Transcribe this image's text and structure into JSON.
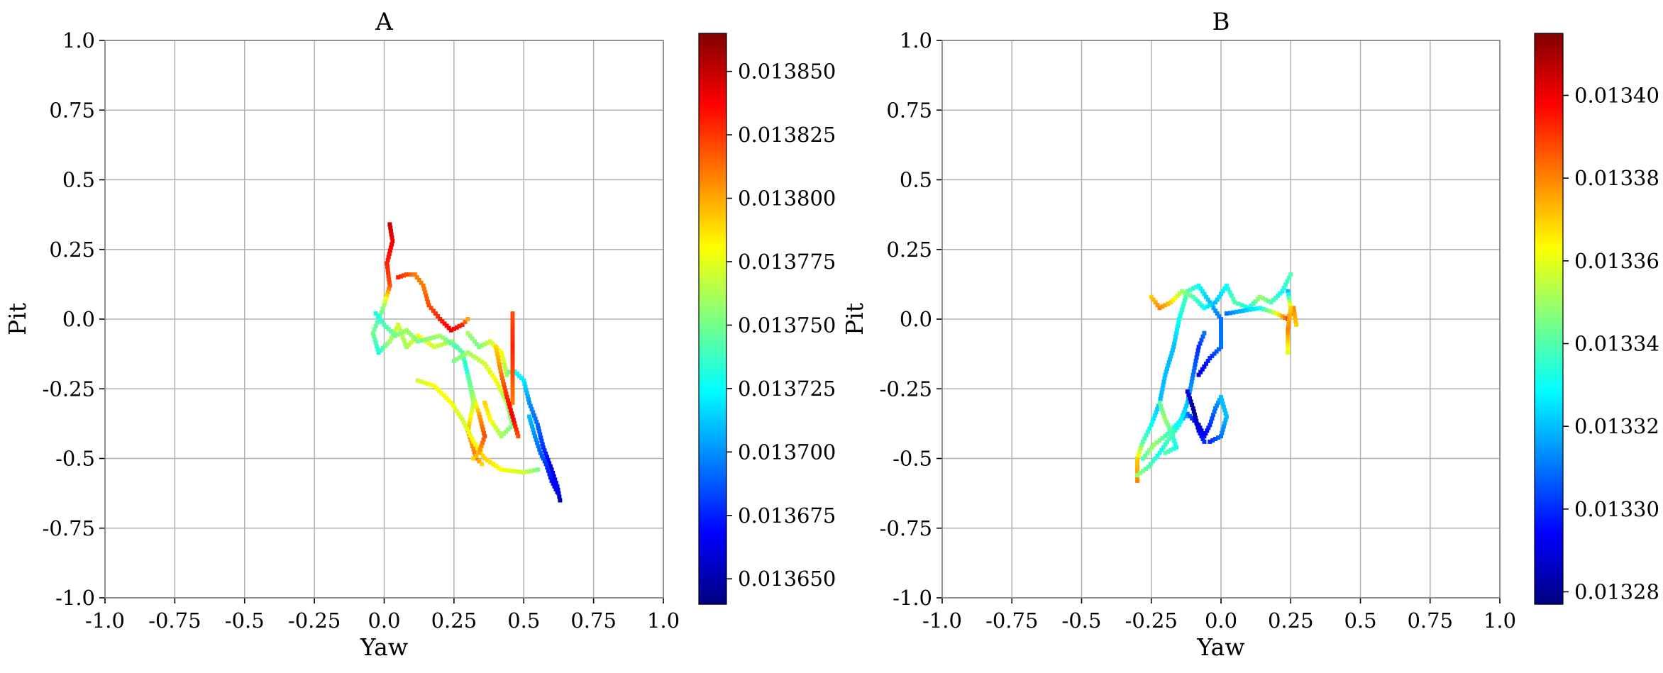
{
  "colormap": "jet",
  "chart_data": [
    {
      "type": "heatmap",
      "title": "A",
      "xlabel": "Yaw",
      "ylabel": "Pit",
      "xlim": [
        -1.0,
        1.0
      ],
      "ylim": [
        -1.0,
        1.0
      ],
      "grid": true,
      "xticks": [
        "-1.0",
        "-0.75",
        "-0.5",
        "-0.25",
        "0.0",
        "0.25",
        "0.5",
        "0.75",
        "1.0"
      ],
      "yticks": [
        "-1.0",
        "-0.75",
        "-0.5",
        "-0.25",
        "0.0",
        "0.25",
        "0.5",
        "0.75",
        "1.0"
      ],
      "colorbar": {
        "range": [
          0.01364,
          0.013865
        ],
        "ticks": [
          "0.013650",
          "0.013675",
          "0.013700",
          "0.013725",
          "0.013750",
          "0.013775",
          "0.013800",
          "0.013825",
          "0.013850"
        ],
        "tick_values": [
          0.01365,
          0.013675,
          0.0137,
          0.013725,
          0.01375,
          0.013775,
          0.0138,
          0.013825,
          0.01385
        ]
      },
      "paths": [
        [
          [
            0.02,
            0.34
          ],
          [
            0.03,
            0.28
          ],
          [
            0.01,
            0.2
          ],
          [
            0.02,
            0.12
          ],
          [
            0.0,
            0.05
          ],
          [
            -0.02,
            0.0
          ],
          [
            -0.04,
            -0.05
          ],
          [
            -0.02,
            -0.12
          ],
          [
            0.02,
            -0.08
          ],
          [
            0.05,
            -0.02
          ],
          [
            0.08,
            -0.1
          ],
          [
            0.12,
            -0.06
          ],
          [
            0.18,
            -0.1
          ],
          [
            0.24,
            -0.08
          ],
          [
            0.28,
            -0.12
          ],
          [
            0.3,
            -0.2
          ],
          [
            0.32,
            -0.3
          ],
          [
            0.3,
            -0.4
          ],
          [
            0.33,
            -0.5
          ],
          [
            0.35,
            -0.52
          ]
        ],
        [
          [
            0.05,
            0.15
          ],
          [
            0.08,
            0.16
          ],
          [
            0.11,
            0.16
          ],
          [
            0.14,
            0.12
          ],
          [
            0.16,
            0.05
          ],
          [
            0.2,
            0.0
          ],
          [
            0.24,
            -0.04
          ],
          [
            0.28,
            -0.02
          ],
          [
            0.3,
            0.0
          ]
        ],
        [
          [
            0.3,
            -0.05
          ],
          [
            0.34,
            -0.1
          ],
          [
            0.38,
            -0.08
          ],
          [
            0.42,
            -0.12
          ],
          [
            0.44,
            -0.2
          ],
          [
            0.46,
            -0.18
          ],
          [
            0.5,
            -0.22
          ],
          [
            0.52,
            -0.3
          ],
          [
            0.55,
            -0.38
          ],
          [
            0.57,
            -0.46
          ],
          [
            0.6,
            -0.54
          ],
          [
            0.62,
            -0.6
          ],
          [
            0.63,
            -0.65
          ]
        ],
        [
          [
            0.12,
            -0.22
          ],
          [
            0.18,
            -0.24
          ],
          [
            0.24,
            -0.3
          ],
          [
            0.28,
            -0.36
          ],
          [
            0.32,
            -0.44
          ],
          [
            0.36,
            -0.5
          ],
          [
            0.42,
            -0.54
          ],
          [
            0.5,
            -0.55
          ],
          [
            0.55,
            -0.54
          ]
        ],
        [
          [
            0.25,
            -0.15
          ],
          [
            0.3,
            -0.12
          ],
          [
            0.36,
            -0.16
          ],
          [
            0.4,
            -0.22
          ],
          [
            0.44,
            -0.3
          ],
          [
            0.46,
            -0.38
          ],
          [
            0.42,
            -0.42
          ],
          [
            0.38,
            -0.36
          ],
          [
            0.36,
            -0.3
          ]
        ],
        [
          [
            0.46,
            0.02
          ],
          [
            0.46,
            -0.1
          ],
          [
            0.46,
            -0.2
          ],
          [
            0.46,
            -0.3
          ]
        ],
        [
          [
            0.4,
            -0.1
          ],
          [
            0.42,
            -0.2
          ],
          [
            0.44,
            -0.28
          ],
          [
            0.46,
            -0.35
          ],
          [
            0.48,
            -0.42
          ]
        ],
        [
          [
            0.52,
            -0.35
          ],
          [
            0.54,
            -0.42
          ],
          [
            0.56,
            -0.48
          ],
          [
            0.58,
            -0.52
          ],
          [
            0.6,
            -0.58
          ],
          [
            0.62,
            -0.62
          ]
        ],
        [
          [
            0.3,
            -0.2
          ],
          [
            0.32,
            -0.28
          ],
          [
            0.34,
            -0.34
          ],
          [
            0.36,
            -0.42
          ],
          [
            0.34,
            -0.48
          ],
          [
            0.32,
            -0.5
          ]
        ],
        [
          [
            -0.03,
            0.02
          ],
          [
            0.0,
            -0.02
          ],
          [
            0.04,
            -0.06
          ],
          [
            0.08,
            -0.04
          ],
          [
            0.12,
            -0.08
          ],
          [
            0.2,
            -0.06
          ],
          [
            0.26,
            -0.1
          ]
        ]
      ],
      "path_values": [
        [
          0.01385,
          0.01384,
          0.01383,
          0.01382,
          0.01376,
          0.01374,
          0.01375,
          0.01373,
          0.01376,
          0.01377,
          0.01376,
          0.01378,
          0.01377,
          0.01376,
          0.01374,
          0.01373,
          0.01376,
          0.0138,
          0.01381,
          0.01379
        ],
        [
          0.01383,
          0.01382,
          0.01381,
          0.01381,
          0.01382,
          0.01383,
          0.01384,
          0.01383,
          0.0138
        ],
        [
          0.01376,
          0.01375,
          0.01377,
          0.01378,
          0.01376,
          0.01373,
          0.01372,
          0.0137,
          0.01369,
          0.01368,
          0.01366,
          0.01367,
          0.01365
        ],
        [
          0.01377,
          0.01378,
          0.01378,
          0.01377,
          0.01378,
          0.01379,
          0.01378,
          0.01377,
          0.01375
        ],
        [
          0.01375,
          0.01376,
          0.01377,
          0.01378,
          0.01376,
          0.01375,
          0.01376,
          0.01378,
          0.01379
        ],
        [
          0.01382,
          0.01383,
          0.01382,
          0.01381
        ],
        [
          0.01379,
          0.01381,
          0.01383,
          0.01384,
          0.01382
        ],
        [
          0.01371,
          0.0137,
          0.01369,
          0.01368,
          0.01367,
          0.01366
        ],
        [
          0.01374,
          0.01376,
          0.0138,
          0.01382,
          0.0138,
          0.01379
        ],
        [
          0.01373,
          0.01374,
          0.01375,
          0.01376,
          0.01375,
          0.01376,
          0.01374
        ]
      ]
    },
    {
      "type": "heatmap",
      "title": "B",
      "xlabel": "Yaw",
      "ylabel": "Pit",
      "xlim": [
        -1.0,
        1.0
      ],
      "ylim": [
        -1.0,
        1.0
      ],
      "grid": true,
      "xticks": [
        "-1.0",
        "-0.75",
        "-0.5",
        "-0.25",
        "0.0",
        "0.25",
        "0.5",
        "0.75",
        "1.0"
      ],
      "yticks": [
        "-1.0",
        "-0.75",
        "-0.5",
        "-0.25",
        "0.0",
        "0.25",
        "0.5",
        "0.75",
        "1.0"
      ],
      "colorbar": {
        "range": [
          0.013277,
          0.013415
        ],
        "ticks": [
          "0.01328",
          "0.01330",
          "0.01332",
          "0.01334",
          "0.01336",
          "0.01338",
          "0.01340"
        ],
        "tick_values": [
          0.01328,
          0.0133,
          0.01332,
          0.01334,
          0.01336,
          0.01338,
          0.0134
        ]
      },
      "paths": [
        [
          [
            -0.3,
            -0.58
          ],
          [
            -0.3,
            -0.5
          ],
          [
            -0.28,
            -0.44
          ],
          [
            -0.25,
            -0.38
          ],
          [
            -0.22,
            -0.3
          ],
          [
            -0.2,
            -0.2
          ],
          [
            -0.17,
            -0.1
          ],
          [
            -0.15,
            0.0
          ],
          [
            -0.12,
            0.1
          ],
          [
            -0.08,
            0.12
          ],
          [
            -0.04,
            0.06
          ],
          [
            0.0,
            0.0
          ],
          [
            0.0,
            -0.1
          ],
          [
            -0.04,
            -0.14
          ],
          [
            -0.08,
            -0.2
          ]
        ],
        [
          [
            -0.25,
            0.08
          ],
          [
            -0.22,
            0.04
          ],
          [
            -0.18,
            0.06
          ],
          [
            -0.14,
            0.1
          ],
          [
            -0.1,
            0.08
          ],
          [
            -0.06,
            0.04
          ],
          [
            -0.02,
            0.06
          ],
          [
            0.02,
            0.12
          ],
          [
            0.05,
            0.06
          ],
          [
            0.1,
            0.04
          ],
          [
            0.14,
            0.08
          ],
          [
            0.18,
            0.06
          ],
          [
            0.22,
            0.1
          ],
          [
            0.25,
            0.16
          ]
        ],
        [
          [
            0.02,
            0.02
          ],
          [
            0.08,
            0.03
          ],
          [
            0.14,
            0.04
          ],
          [
            0.2,
            0.02
          ],
          [
            0.24,
            0.0
          ],
          [
            0.26,
            0.04
          ],
          [
            0.27,
            -0.02
          ]
        ],
        [
          [
            -0.28,
            -0.5
          ],
          [
            -0.24,
            -0.45
          ],
          [
            -0.2,
            -0.42
          ],
          [
            -0.16,
            -0.38
          ],
          [
            -0.12,
            -0.34
          ],
          [
            -0.08,
            -0.38
          ],
          [
            -0.06,
            -0.42
          ],
          [
            -0.04,
            -0.38
          ],
          [
            -0.02,
            -0.32
          ],
          [
            0.0,
            -0.28
          ],
          [
            0.02,
            -0.35
          ],
          [
            0.0,
            -0.42
          ],
          [
            -0.04,
            -0.44
          ]
        ],
        [
          [
            -0.3,
            -0.56
          ],
          [
            -0.26,
            -0.53
          ],
          [
            -0.22,
            -0.48
          ],
          [
            -0.18,
            -0.42
          ],
          [
            -0.15,
            -0.38
          ],
          [
            -0.12,
            -0.3
          ],
          [
            -0.1,
            -0.2
          ],
          [
            -0.08,
            -0.1
          ],
          [
            -0.06,
            -0.05
          ]
        ],
        [
          [
            -0.12,
            -0.26
          ],
          [
            -0.1,
            -0.32
          ],
          [
            -0.08,
            -0.4
          ],
          [
            -0.06,
            -0.44
          ]
        ],
        [
          [
            0.24,
            0.1
          ],
          [
            0.25,
            0.04
          ],
          [
            0.24,
            -0.04
          ],
          [
            0.24,
            -0.12
          ]
        ],
        [
          [
            -0.22,
            -0.3
          ],
          [
            -0.2,
            -0.36
          ],
          [
            -0.18,
            -0.4
          ],
          [
            -0.16,
            -0.46
          ],
          [
            -0.2,
            -0.48
          ]
        ]
      ],
      "path_values": [
        [
          0.01338,
          0.01337,
          0.01334,
          0.01333,
          0.01332,
          0.01332,
          0.01332,
          0.01333,
          0.01334,
          0.01333,
          0.01332,
          0.01331,
          0.01331,
          0.0133,
          0.01329
        ],
        [
          0.01337,
          0.01338,
          0.01337,
          0.01335,
          0.01334,
          0.01333,
          0.01332,
          0.01333,
          0.01334,
          0.01333,
          0.01335,
          0.01334,
          0.01333,
          0.01334
        ],
        [
          0.01331,
          0.01332,
          0.01333,
          0.01336,
          0.01339,
          0.01338,
          0.01337
        ],
        [
          0.01334,
          0.01335,
          0.01334,
          0.01333,
          0.01331,
          0.01329,
          0.01329,
          0.0133,
          0.01331,
          0.01332,
          0.01332,
          0.01331,
          0.0133
        ],
        [
          0.01335,
          0.01334,
          0.01333,
          0.01334,
          0.01333,
          0.01332,
          0.01331,
          0.0133,
          0.01331
        ],
        [
          0.01329,
          0.01328,
          0.01329,
          0.0133
        ],
        [
          0.01332,
          0.01337,
          0.01338,
          0.01336
        ],
        [
          0.01334,
          0.01335,
          0.01334,
          0.01333,
          0.01334
        ]
      ]
    }
  ]
}
